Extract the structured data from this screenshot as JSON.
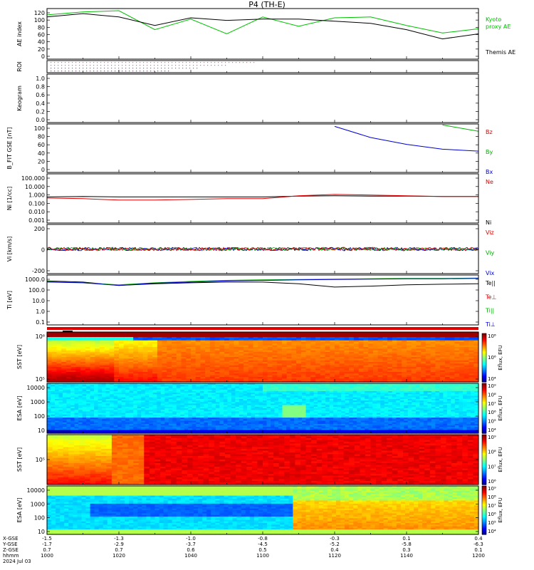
{
  "title": "P4  (TH-E)",
  "panels": [
    {
      "id": "ae",
      "ylabel": "AE index",
      "ticks": [
        "120",
        "100",
        "80",
        "60",
        "40",
        "20",
        "0"
      ],
      "legend": [
        {
          "text": "Kyoto",
          "color": "#00c000"
        },
        {
          "text": "proxy AE",
          "color": "#00c000"
        },
        {
          "text": "Themis AE",
          "color": "#000000"
        }
      ]
    },
    {
      "id": "roi",
      "ylabel": "ROI",
      "ticks": [],
      "legend": []
    },
    {
      "id": "keogram",
      "ylabel": "Keogram",
      "ticks": [
        "1.0",
        "0.8",
        "0.6",
        "0.4",
        "0.2",
        "0.0"
      ],
      "legend": []
    },
    {
      "id": "bfit",
      "ylabel": "B_FIT GSE [nT]",
      "ticks": [
        "100",
        "80",
        "60",
        "40",
        "20",
        "0"
      ],
      "legend": [
        {
          "text": "Bz",
          "color": "#e00000"
        },
        {
          "text": "By",
          "color": "#00b000"
        },
        {
          "text": "Bx",
          "color": "#0000d0"
        }
      ]
    },
    {
      "id": "ni",
      "ylabel": "Ni [1/cc]",
      "ticks": [
        "100.000",
        "10.000",
        "1.000",
        "0.100",
        "0.010",
        "0.001"
      ],
      "legend": [
        {
          "text": "Ne",
          "color": "#e00000"
        },
        {
          "text": "Ni",
          "color": "#000000"
        }
      ]
    },
    {
      "id": "vi",
      "ylabel": "Vi [km/s]",
      "ticks": [
        "200",
        "0",
        "-200"
      ],
      "legend": [
        {
          "text": "Viz",
          "color": "#e00000"
        },
        {
          "text": "Viy",
          "color": "#00b000"
        },
        {
          "text": "Vix",
          "color": "#0000d0"
        }
      ]
    },
    {
      "id": "ti",
      "ylabel": "Ti [eV]",
      "ticks": [
        "1000.0",
        "100.0",
        "10.0",
        "1.0",
        "0.1"
      ],
      "legend": [
        {
          "text": "Te||",
          "color": "#000000"
        },
        {
          "text": "Te⊥",
          "color": "#e00000"
        },
        {
          "text": "Ti||",
          "color": "#00b000"
        },
        {
          "text": "Ti⊥",
          "color": "#0000d0"
        }
      ]
    },
    {
      "id": "sst_e",
      "ylabel": "SST [eV]",
      "ticks": [
        "10⁶",
        "10⁵"
      ],
      "legend": []
    },
    {
      "id": "esa_e",
      "ylabel": "ESA [eV]",
      "ticks": [
        "10000",
        "1000",
        "100",
        "10"
      ],
      "legend": []
    },
    {
      "id": "sst_i",
      "ylabel": "SST [eV]",
      "ticks": [
        "10⁵"
      ],
      "legend": []
    },
    {
      "id": "esa_i",
      "ylabel": "ESA [eV]",
      "ticks": [
        "10000",
        "1000",
        "100",
        "10"
      ],
      "legend": []
    }
  ],
  "colorbars": [
    {
      "label": "Eflux, EFU",
      "ticks": [
        "10⁸",
        "10⁶",
        "10⁴"
      ]
    },
    {
      "label": "Eflux, EFU",
      "ticks": [
        "10⁹",
        "10⁸",
        "10⁷",
        "10⁶",
        "10⁵",
        "10⁴"
      ]
    },
    {
      "label": "Eflux, EFU",
      "ticks": [
        "10⁹",
        "10⁸",
        "10⁷",
        "10⁶"
      ]
    },
    {
      "label": "Eflux, EFU",
      "ticks": [
        "10⁹",
        "10⁸",
        "10⁷",
        "10⁶",
        "10⁵",
        "10⁴"
      ]
    }
  ],
  "xaxis": {
    "row_labels": [
      "X-GSE",
      "Y-GSE",
      "Z-GSE",
      "hhmm",
      "2024 Jul 03"
    ],
    "ticks": [
      {
        "x": "-1.5",
        "y": "-1.7",
        "z": "0.7",
        "t": "1000"
      },
      {
        "x": "-1.3",
        "y": "-2.9",
        "z": "0.7",
        "t": "1020"
      },
      {
        "x": "-1.0",
        "y": "-3.7",
        "z": "0.6",
        "t": "1040"
      },
      {
        "x": "-0.8",
        "y": "-4.5",
        "z": "0.5",
        "t": "1100"
      },
      {
        "x": "-0.3",
        "y": "-5.2",
        "z": "0.4",
        "t": "1120"
      },
      {
        "x": "0.1",
        "y": "-5.8",
        "z": "0.3",
        "t": "1140"
      },
      {
        "x": "0.4",
        "y": "-6.3",
        "z": "0.1",
        "t": "1200"
      }
    ]
  },
  "chart_data": {
    "type": "line",
    "title": "P4  (TH-E)",
    "x_unit": "hhmm",
    "x": [
      "1000",
      "1010",
      "1020",
      "1030",
      "1040",
      "1050",
      "1100",
      "1110",
      "1120",
      "1130",
      "1140",
      "1150",
      "1200"
    ],
    "series": [
      {
        "name": "Kyoto proxy AE",
        "panel": "ae",
        "color": "#00c000",
        "values": [
          105,
          112,
          115,
          70,
          95,
          60,
          100,
          78,
          98,
          100,
          80,
          62,
          72
        ]
      },
      {
        "name": "Themis AE",
        "panel": "ae",
        "color": "#000000",
        "values": [
          100,
          108,
          100,
          80,
          98,
          92,
          95,
          95,
          90,
          85,
          70,
          48,
          60
        ]
      },
      {
        "name": "Bx",
        "panel": "bfit",
        "color": "#0000d0",
        "values": [
          null,
          null,
          null,
          null,
          null,
          null,
          null,
          null,
          95,
          72,
          58,
          48,
          44
        ]
      },
      {
        "name": "By",
        "panel": "bfit",
        "color": "#00b000",
        "values": [
          null,
          null,
          null,
          null,
          null,
          null,
          null,
          null,
          null,
          null,
          null,
          98,
          85
        ]
      },
      {
        "name": "Ni",
        "panel": "ni",
        "color": "#000000",
        "values": [
          0.45,
          0.5,
          0.45,
          0.45,
          0.45,
          0.45,
          0.45,
          0.55,
          0.6,
          0.55,
          0.55,
          0.5,
          0.5
        ]
      },
      {
        "name": "Ne",
        "panel": "ni",
        "color": "#e00000",
        "values": [
          0.35,
          0.3,
          0.22,
          0.22,
          0.25,
          0.3,
          0.3,
          0.6,
          0.8,
          0.7,
          0.6,
          0.5,
          0.5
        ]
      },
      {
        "name": "Te||",
        "panel": "ti",
        "color": "#000000",
        "values": [
          900,
          700,
          350,
          500,
          600,
          700,
          700,
          500,
          250,
          300,
          400,
          450,
          500
        ]
      },
      {
        "name": "Ti||",
        "panel": "ti",
        "color": "#00b000",
        "values": [
          800,
          600,
          400,
          600,
          800,
          1000,
          1100,
          1200,
          1300,
          1400,
          1500,
          1500,
          1600
        ]
      },
      {
        "name": "Ti⊥",
        "panel": "ti",
        "color": "#0000d0",
        "values": [
          700,
          600,
          350,
          550,
          700,
          900,
          1000,
          1100,
          1200,
          1300,
          1400,
          1400,
          1500
        ]
      }
    ],
    "ylim": {
      "ae": [
        0,
        120
      ],
      "keogram": [
        0,
        1
      ],
      "bfit": [
        0,
        100
      ],
      "ni": [
        0.001,
        100
      ],
      "vi": [
        -400,
        400
      ],
      "ti": [
        0.1,
        3000
      ]
    }
  }
}
